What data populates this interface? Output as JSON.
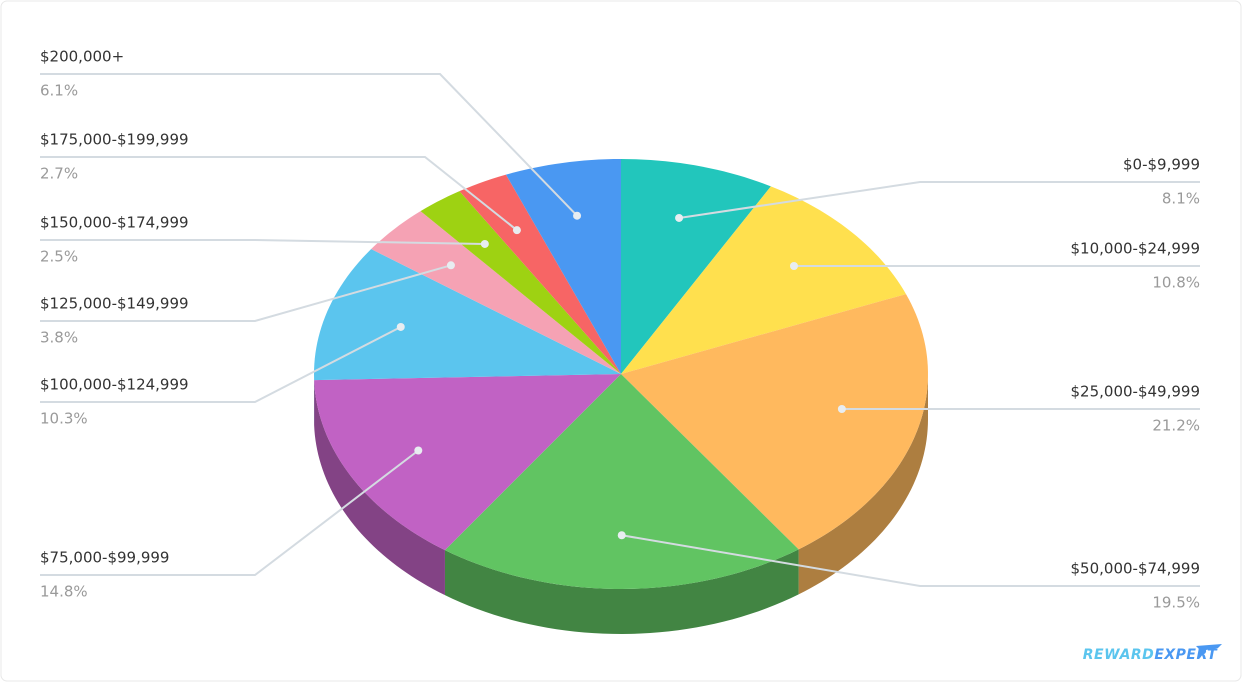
{
  "chart_data": {
    "type": "pie",
    "categories": [
      "$0-$9,999",
      "$10,000-$24,999",
      "$25,000-$49,999",
      "$50,000-$74,999",
      "$75,000-$99,999",
      "$100,000-$124,999",
      "$125,000-$149,999",
      "$150,000-$174,999",
      "$175,000-$199,999",
      "$200,000+"
    ],
    "values": [
      8.1,
      10.8,
      21.2,
      19.5,
      14.8,
      10.3,
      3.8,
      2.5,
      2.7,
      6.1
    ],
    "value_labels": [
      "8.1%",
      "10.8%",
      "21.2%",
      "19.5%",
      "14.8%",
      "10.3%",
      "3.8%",
      "2.5%",
      "2.7%",
      "6.1%"
    ],
    "colors": [
      "#22c6bc",
      "#ffe04e",
      "#ffb95e",
      "#61c462",
      "#c162c4",
      "#5bc5ee",
      "#f5a2b4",
      "#9ed212",
      "#f76565",
      "#4a98f2"
    ]
  },
  "brand": [
    "REWARD",
    "EXPERT"
  ]
}
